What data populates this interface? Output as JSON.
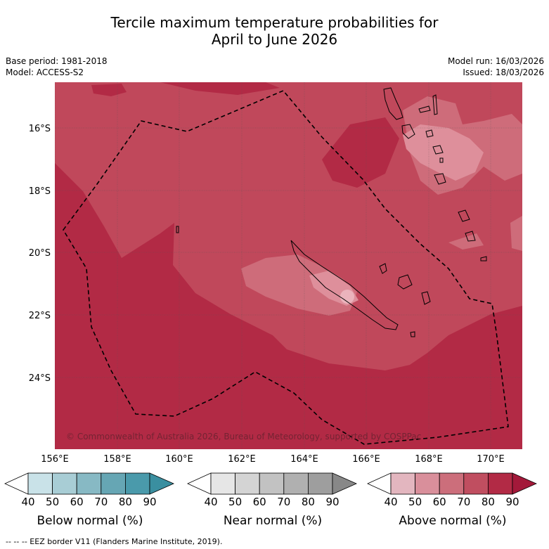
{
  "title": {
    "line1": "Tercile maximum temperature probabilities for",
    "line2": "April to June 2026"
  },
  "info": {
    "base_period": "Base period: 1981-2018",
    "model": "Model: ACCESS-S2",
    "model_run": "Model run: 16/03/2026",
    "issued": "Issued: 18/03/2026"
  },
  "map": {
    "lat_labels": [
      "16°S",
      "18°S",
      "20°S",
      "22°S",
      "24°S"
    ],
    "lon_labels": [
      "156°E",
      "158°E",
      "160°E",
      "162°E",
      "164°E",
      "166°E",
      "168°E",
      "170°E"
    ],
    "copyright": "© Commonwealth of Australia 2026, Bureau of Meteorology, supported by COSPPac",
    "colors": {
      "above_80_90": "#b22a45",
      "above_70_80": "#c0485b",
      "above_60_70": "#ce6c7a",
      "above_50_60": "#de8f9b"
    }
  },
  "legend": {
    "ticks": [
      "40",
      "50",
      "60",
      "70",
      "80",
      "90"
    ],
    "below": {
      "title": "Below normal (%)",
      "colors": [
        "#ffffff",
        "#c9e2e8",
        "#a8cdd5",
        "#87b9c4",
        "#66a6b4",
        "#4a9aab",
        "#3a8fa0"
      ]
    },
    "near": {
      "title": "Near normal (%)",
      "colors": [
        "#ffffff",
        "#e6e6e6",
        "#d4d4d4",
        "#c2c2c2",
        "#b0b0b0",
        "#9e9e9e",
        "#888888"
      ]
    },
    "above": {
      "title": "Above normal (%)",
      "colors": [
        "#ffffff",
        "#e3b6bf",
        "#d98f9b",
        "#cc6e7b",
        "#c04e60",
        "#b22a45",
        "#a3193a"
      ]
    }
  },
  "footer": {
    "eez_text": "-- -- -- EEZ border V11 (Flanders Marine Institute, 2019)."
  }
}
